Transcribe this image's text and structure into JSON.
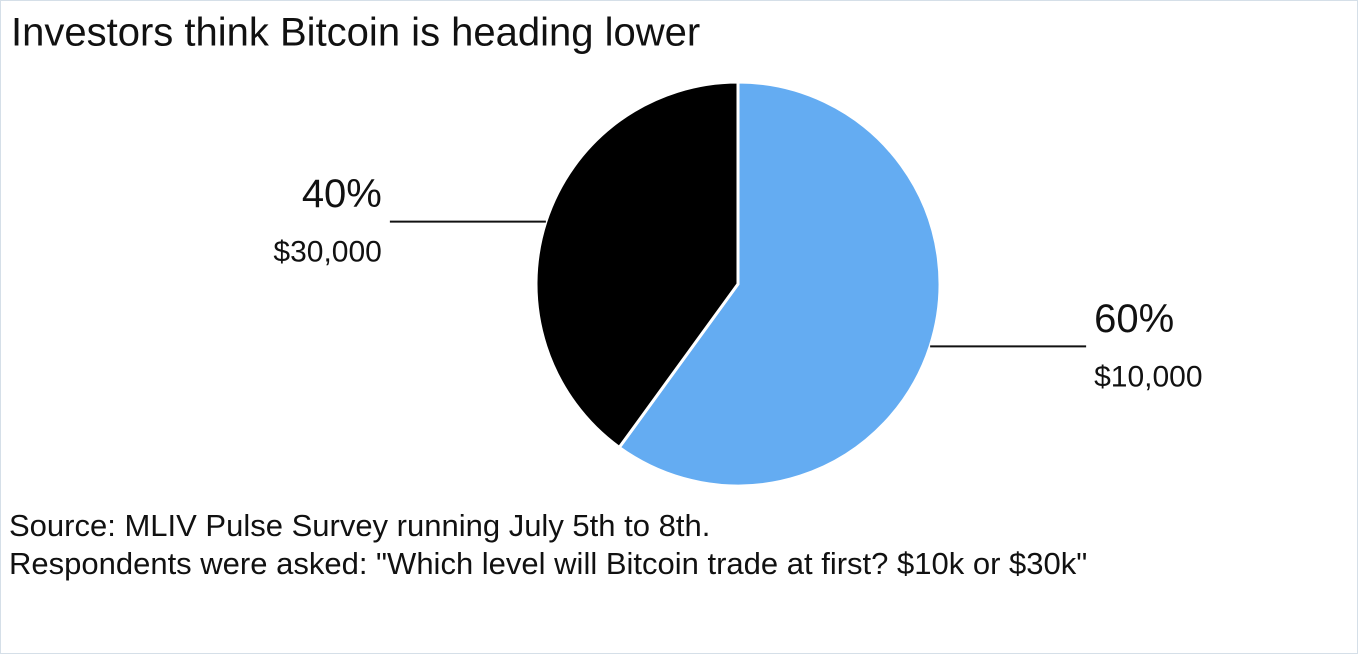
{
  "chart_data": {
    "type": "pie",
    "title": "Investors think Bitcoin is heading lower",
    "categories": [
      "$10,000",
      "$30,000"
    ],
    "values": [
      60,
      40
    ],
    "value_labels": [
      "60%",
      "40%"
    ],
    "colors": [
      "#64acf2",
      "#000000"
    ],
    "notes": [
      "Source: MLIV Pulse Survey running July 5th to 8th.",
      "Respondents were asked: \"Which level will Bitcoin trade at first? $10k or $30k\""
    ]
  }
}
